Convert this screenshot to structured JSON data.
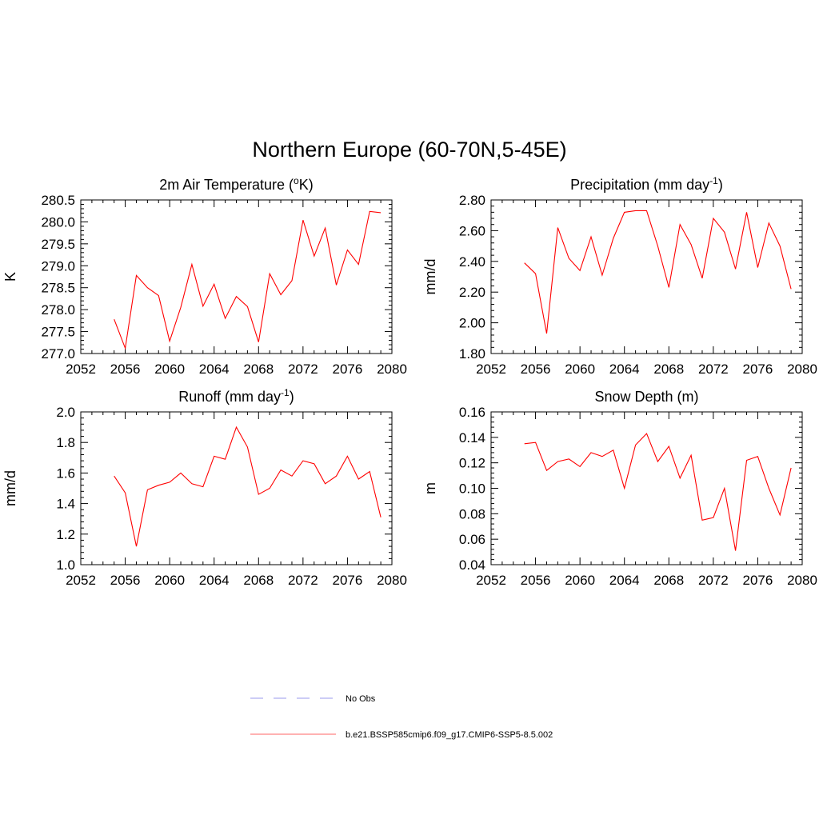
{
  "figure": {
    "title": "Northern Europe (60-70N,5-45E)"
  },
  "legend": {
    "items": [
      {
        "label": "No Obs",
        "color": "#9999ee",
        "style": "dashed"
      },
      {
        "label": "b.e21.BSSP585cmip6.f09_g17.CMIP6-SSP5-8.5.002",
        "color": "#ff6666",
        "style": "solid"
      }
    ]
  },
  "chart_data": [
    {
      "type": "line",
      "title": "2m Air Temperature (oK)",
      "title_parts": [
        "2m Air Temperature (",
        "o",
        "K)"
      ],
      "ylabel": "K",
      "xlim": [
        2052,
        2080
      ],
      "ylim": [
        277.0,
        280.5
      ],
      "xticks": [
        2052,
        2056,
        2060,
        2064,
        2068,
        2072,
        2076,
        2080
      ],
      "yticks": [
        277.0,
        277.5,
        278.0,
        278.5,
        279.0,
        279.5,
        280.0,
        280.5
      ],
      "ytick_labels": [
        "277.0",
        "277.5",
        "278.0",
        "278.5",
        "279.0",
        "279.5",
        "280.0",
        "280.5"
      ],
      "series": [
        {
          "color": "#ff0000",
          "x": [
            2055,
            2056,
            2057,
            2058,
            2059,
            2060,
            2061,
            2062,
            2063,
            2064,
            2065,
            2066,
            2067,
            2068,
            2069,
            2070,
            2071,
            2072,
            2073,
            2074,
            2075,
            2076,
            2077,
            2078,
            2079
          ],
          "y": [
            277.78,
            277.12,
            278.78,
            278.5,
            278.32,
            277.28,
            278.05,
            279.03,
            278.08,
            278.58,
            277.8,
            278.3,
            278.07,
            277.26,
            278.82,
            278.34,
            278.66,
            280.04,
            279.22,
            279.86,
            278.56,
            279.36,
            279.03,
            280.24,
            280.21
          ]
        }
      ]
    },
    {
      "type": "line",
      "title": "Precipitation (mm day-1)",
      "title_parts": [
        "Precipitation (mm day",
        "-1",
        ")"
      ],
      "ylabel": "mm/d",
      "xlim": [
        2052,
        2080
      ],
      "ylim": [
        1.8,
        2.8
      ],
      "xticks": [
        2052,
        2056,
        2060,
        2064,
        2068,
        2072,
        2076,
        2080
      ],
      "yticks": [
        1.8,
        2.0,
        2.2,
        2.4,
        2.6,
        2.8
      ],
      "ytick_labels": [
        "1.80",
        "2.00",
        "2.20",
        "2.40",
        "2.60",
        "2.80"
      ],
      "series": [
        {
          "color": "#ff0000",
          "x": [
            2055,
            2056,
            2057,
            2058,
            2059,
            2060,
            2061,
            2062,
            2063,
            2064,
            2065,
            2066,
            2067,
            2068,
            2069,
            2070,
            2071,
            2072,
            2073,
            2074,
            2075,
            2076,
            2077,
            2078,
            2079
          ],
          "y": [
            2.39,
            2.32,
            1.93,
            2.62,
            2.42,
            2.34,
            2.56,
            2.31,
            2.55,
            2.72,
            2.73,
            2.73,
            2.5,
            2.23,
            2.64,
            2.51,
            2.29,
            2.68,
            2.59,
            2.35,
            2.72,
            2.36,
            2.65,
            2.5,
            2.22
          ]
        }
      ]
    },
    {
      "type": "line",
      "title": "Runoff (mm day-1)",
      "title_parts": [
        "Runoff (mm day",
        "-1",
        ")"
      ],
      "ylabel": "mm/d",
      "xlim": [
        2052,
        2080
      ],
      "ylim": [
        1.0,
        2.0
      ],
      "xticks": [
        2052,
        2056,
        2060,
        2064,
        2068,
        2072,
        2076,
        2080
      ],
      "yticks": [
        1.0,
        1.2,
        1.4,
        1.6,
        1.8,
        2.0
      ],
      "ytick_labels": [
        "1.0",
        "1.2",
        "1.4",
        "1.6",
        "1.8",
        "2.0"
      ],
      "series": [
        {
          "color": "#ff0000",
          "x": [
            2055,
            2056,
            2057,
            2058,
            2059,
            2060,
            2061,
            2062,
            2063,
            2064,
            2065,
            2066,
            2067,
            2068,
            2069,
            2070,
            2071,
            2072,
            2073,
            2074,
            2075,
            2076,
            2077,
            2078,
            2079
          ],
          "y": [
            1.58,
            1.47,
            1.12,
            1.49,
            1.52,
            1.54,
            1.6,
            1.53,
            1.51,
            1.71,
            1.69,
            1.9,
            1.77,
            1.46,
            1.5,
            1.62,
            1.58,
            1.68,
            1.66,
            1.53,
            1.58,
            1.71,
            1.56,
            1.61,
            1.31
          ]
        }
      ]
    },
    {
      "type": "line",
      "title": "Snow Depth (m)",
      "title_parts": [
        "Snow Depth (m)",
        "",
        ""
      ],
      "ylabel": "m",
      "xlim": [
        2052,
        2080
      ],
      "ylim": [
        0.04,
        0.16
      ],
      "xticks": [
        2052,
        2056,
        2060,
        2064,
        2068,
        2072,
        2076,
        2080
      ],
      "yticks": [
        0.04,
        0.06,
        0.08,
        0.1,
        0.12,
        0.14,
        0.16
      ],
      "ytick_labels": [
        "0.04",
        "0.06",
        "0.08",
        "0.10",
        "0.12",
        "0.14",
        "0.16"
      ],
      "series": [
        {
          "color": "#ff0000",
          "x": [
            2055,
            2056,
            2057,
            2058,
            2059,
            2060,
            2061,
            2062,
            2063,
            2064,
            2065,
            2066,
            2067,
            2068,
            2069,
            2070,
            2071,
            2072,
            2073,
            2074,
            2075,
            2076,
            2077,
            2078,
            2079
          ],
          "y": [
            0.135,
            0.136,
            0.114,
            0.121,
            0.123,
            0.117,
            0.128,
            0.125,
            0.13,
            0.1,
            0.134,
            0.143,
            0.121,
            0.133,
            0.108,
            0.126,
            0.075,
            0.077,
            0.1,
            0.051,
            0.122,
            0.125,
            0.1,
            0.079,
            0.116
          ]
        }
      ]
    }
  ]
}
